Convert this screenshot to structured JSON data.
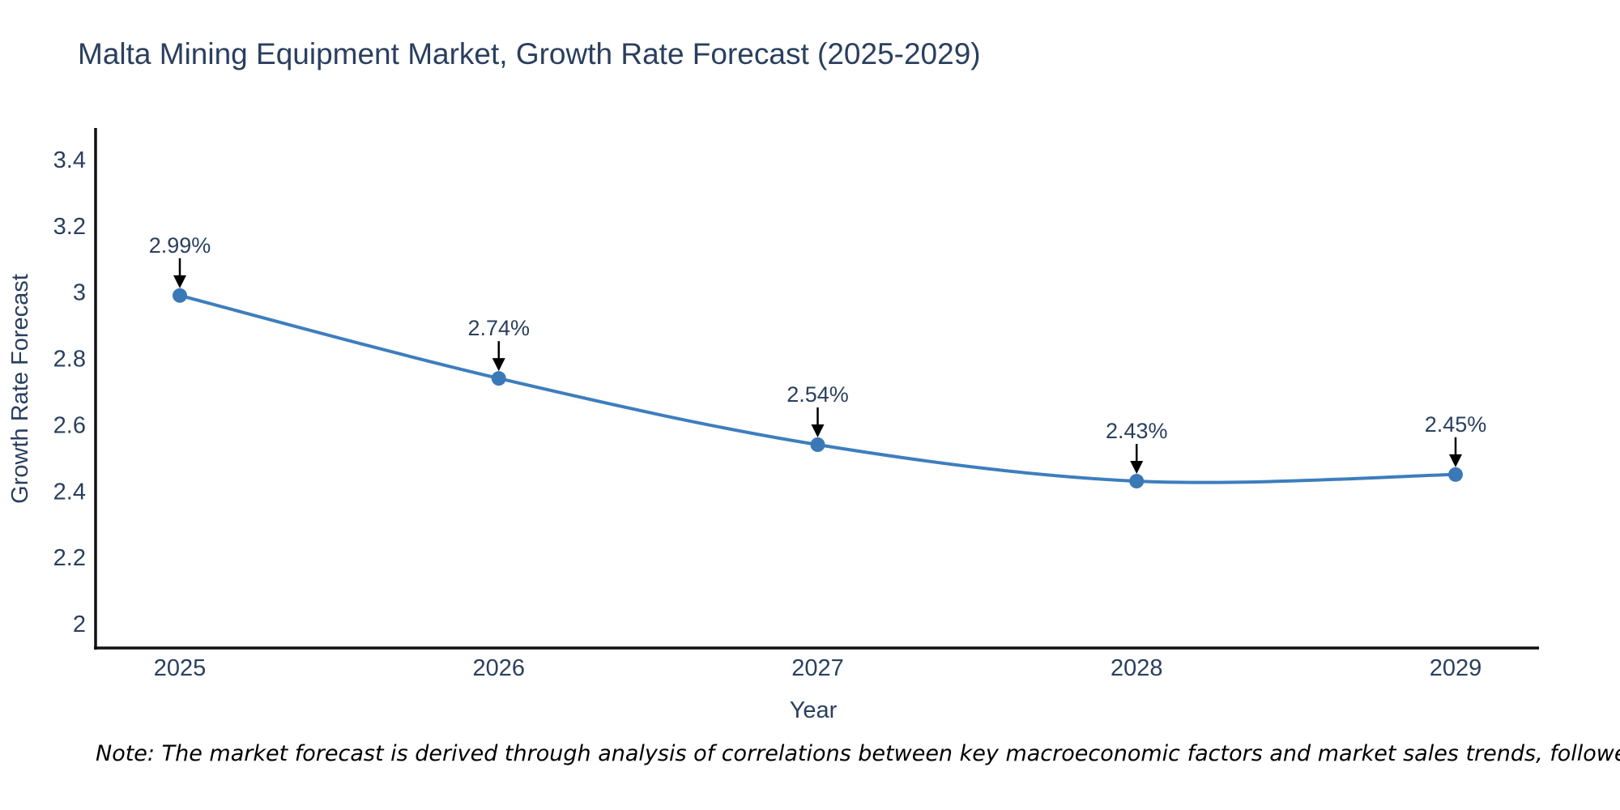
{
  "title": "Malta Mining Equipment Market, Growth Rate Forecast (2025-2029)",
  "note": "Note: The market forecast is derived through analysis of correlations between key macroeconomic factors and market sales trends, followed by predictive modeling to project future sales",
  "chart_data": {
    "type": "line",
    "title": "Malta Mining Equipment Market, Growth Rate Forecast (2025-2029)",
    "xlabel": "Year",
    "ylabel": "Growth Rate Forecast",
    "categories": [
      "2025",
      "2026",
      "2027",
      "2028",
      "2029"
    ],
    "series": [
      {
        "name": "Growth Rate Forecast",
        "values": [
          2.99,
          2.74,
          2.54,
          2.43,
          2.45
        ]
      }
    ],
    "point_labels": [
      "2.99%",
      "2.74%",
      "2.54%",
      "2.43%",
      "2.45%"
    ],
    "ytick_values": [
      3.4,
      3.2,
      3.0,
      2.8,
      2.6,
      2.4,
      2.2,
      2.0
    ],
    "ytick_labels": [
      "3.4",
      "3.2",
      "3",
      "2.8",
      "2.6",
      "2.4",
      "2.2",
      "2"
    ],
    "ylim": [
      1.93,
      3.49
    ],
    "line_shape": "spline",
    "grid": false,
    "legend_position": "none",
    "colors": {
      "line": "#3d7ebd",
      "marker": "#3a79b8",
      "axis_line": "#111111",
      "text": "#2a3f5f",
      "annotation_text": "#2a3f5f",
      "arrow": "#000000",
      "note_text": "#000000",
      "background": "#ffffff"
    }
  }
}
